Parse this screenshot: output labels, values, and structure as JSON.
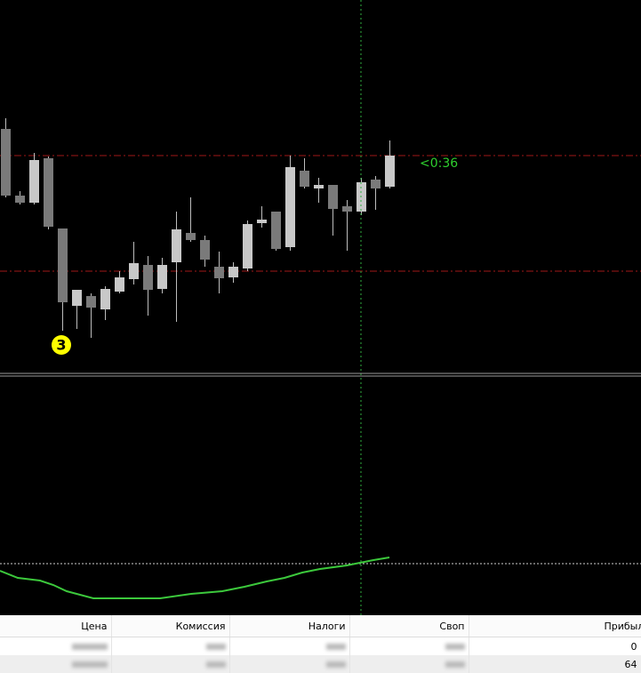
{
  "chart_label": "<0:36",
  "marker": "3",
  "table": {
    "headers": [
      "Цена",
      "Комиссия",
      "Налоги",
      "Своп",
      "Прибыль"
    ],
    "rows": [
      [
        "0"
      ],
      [
        "64"
      ]
    ]
  }
}
